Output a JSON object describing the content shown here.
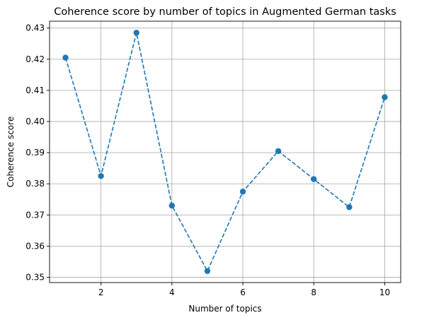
{
  "chart_data": {
    "type": "line",
    "title": "Coherence score by number of topics in Augmented German tasks",
    "xlabel": "Number of topics",
    "ylabel": "Coherence score",
    "x": [
      1,
      2,
      3,
      4,
      5,
      6,
      7,
      8,
      9,
      10
    ],
    "series": [
      {
        "values": [
          0.4205,
          0.3825,
          0.4285,
          0.373,
          0.352,
          0.3775,
          0.3905,
          0.3815,
          0.3725,
          0.4078
        ],
        "color": "#1f77b4",
        "line_style": "dashed",
        "marker": "circle"
      }
    ],
    "xlim": [
      0.55,
      10.45
    ],
    "ylim": [
      0.3483,
      0.4322
    ],
    "xticks": [
      2,
      4,
      6,
      8,
      10
    ],
    "xtick_labels": [
      "2",
      "4",
      "6",
      "8",
      "10"
    ],
    "yticks": [
      0.35,
      0.36,
      0.37,
      0.38,
      0.39,
      0.4,
      0.41,
      0.42,
      0.43
    ],
    "ytick_labels": [
      "0.35",
      "0.36",
      "0.37",
      "0.38",
      "0.39",
      "0.40",
      "0.41",
      "0.42",
      "0.43"
    ],
    "grid": true,
    "grid_color": "#b0b0b0",
    "legend": "none"
  }
}
